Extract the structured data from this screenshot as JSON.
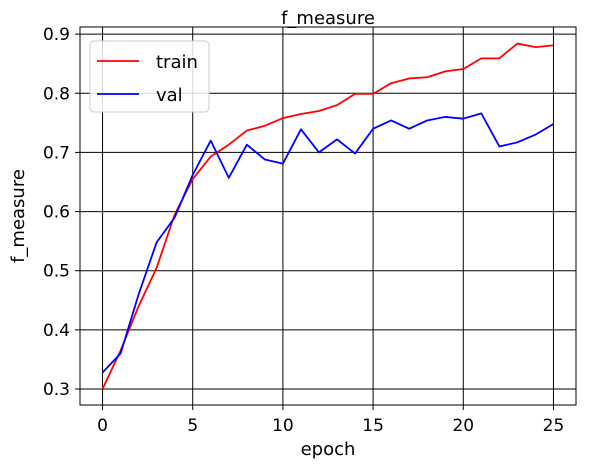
{
  "chart_data": {
    "type": "line",
    "title": "f_measure",
    "xlabel": "epoch",
    "ylabel": "f_measure",
    "xlim": [
      -1.25,
      26.25
    ],
    "ylim": [
      0.273,
      0.912
    ],
    "xticks": [
      0,
      5,
      10,
      15,
      20,
      25
    ],
    "yticks": [
      0.3,
      0.4,
      0.5,
      0.6,
      0.7,
      0.8,
      0.9
    ],
    "grid": true,
    "legend_position": "top-left",
    "x": [
      0,
      1,
      2,
      3,
      4,
      5,
      6,
      7,
      8,
      9,
      10,
      11,
      12,
      13,
      14,
      15,
      16,
      17,
      18,
      19,
      20,
      21,
      22,
      23,
      24,
      25
    ],
    "series": [
      {
        "name": "train",
        "color": "#ff0000",
        "values": [
          0.3,
          0.365,
          0.44,
          0.505,
          0.595,
          0.655,
          0.693,
          0.713,
          0.737,
          0.745,
          0.758,
          0.765,
          0.77,
          0.78,
          0.799,
          0.799,
          0.817,
          0.825,
          0.827,
          0.837,
          0.841,
          0.859,
          0.859,
          0.884,
          0.878,
          0.881
        ]
      },
      {
        "name": "val",
        "color": "#0000ff",
        "values": [
          0.328,
          0.36,
          0.46,
          0.548,
          0.59,
          0.662,
          0.72,
          0.657,
          0.713,
          0.688,
          0.681,
          0.739,
          0.7,
          0.722,
          0.698,
          0.74,
          0.754,
          0.74,
          0.754,
          0.76,
          0.757,
          0.766,
          0.71,
          0.717,
          0.73,
          0.748
        ]
      }
    ]
  }
}
